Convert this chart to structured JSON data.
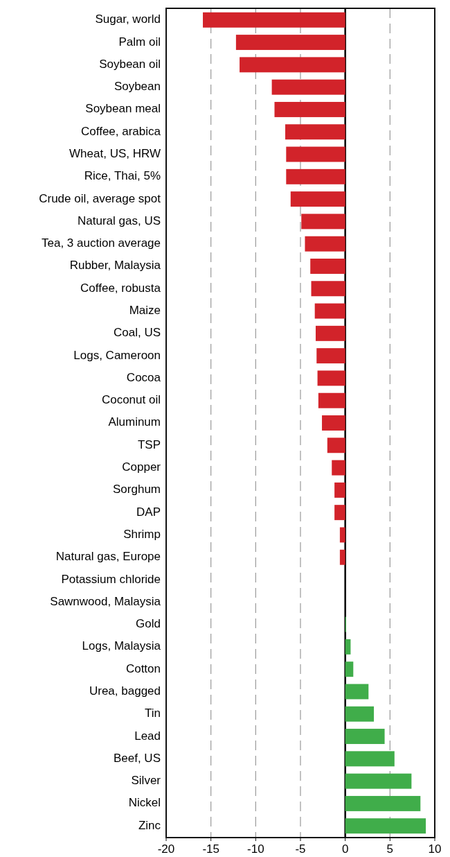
{
  "chart_data": {
    "type": "bar",
    "orientation": "horizontal",
    "categories": [
      "Sugar, world",
      "Palm oil",
      "Soybean oil",
      "Soybean",
      "Soybean meal",
      "Coffee, arabica",
      "Wheat, US, HRW",
      "Rice, Thai, 5%",
      "Crude oil, average spot",
      "Natural gas, US",
      "Tea, 3 auction average",
      "Rubber, Malaysia",
      "Coffee, robusta",
      "Maize",
      "Coal, US",
      "Logs, Cameroon",
      "Cocoa",
      "Coconut oil",
      "Aluminum",
      "TSP",
      "Copper",
      "Sorghum",
      "DAP",
      "Shrimp",
      "Natural gas, Europe",
      "Potassium chloride",
      "Sawnwood, Malaysia",
      "Gold",
      "Logs, Malaysia",
      "Cotton",
      "Urea, bagged",
      "Tin",
      "Lead",
      "Beef, US",
      "Silver",
      "Nickel",
      "Zinc"
    ],
    "values": [
      -15.9,
      -12.2,
      -11.8,
      -8.2,
      -7.9,
      -6.7,
      -6.6,
      -6.6,
      -6.1,
      -4.9,
      -4.5,
      -3.9,
      -3.8,
      -3.4,
      -3.3,
      -3.2,
      -3.1,
      -3.0,
      -2.6,
      -2.0,
      -1.5,
      -1.2,
      -1.2,
      -0.6,
      -0.6,
      0,
      0,
      0.1,
      0.6,
      0.9,
      2.6,
      3.2,
      4.4,
      5.5,
      7.4,
      8.4,
      9.0
    ],
    "colors": [
      "#d2232a",
      "#d2232a",
      "#d2232a",
      "#d2232a",
      "#d2232a",
      "#d2232a",
      "#d2232a",
      "#d2232a",
      "#d2232a",
      "#d2232a",
      "#d2232a",
      "#d2232a",
      "#d2232a",
      "#d2232a",
      "#d2232a",
      "#d2232a",
      "#d2232a",
      "#d2232a",
      "#d2232a",
      "#d2232a",
      "#d2232a",
      "#d2232a",
      "#d2232a",
      "#d2232a",
      "#d2232a",
      "#40ad4a",
      "#40ad4a",
      "#40ad4a",
      "#40ad4a",
      "#40ad4a",
      "#40ad4a",
      "#40ad4a",
      "#40ad4a",
      "#40ad4a",
      "#40ad4a",
      "#40ad4a",
      "#40ad4a"
    ],
    "xlim": [
      -20,
      10
    ],
    "xticks": [
      -20,
      -15,
      -10,
      -5,
      0,
      5,
      10
    ],
    "grid": "x"
  }
}
